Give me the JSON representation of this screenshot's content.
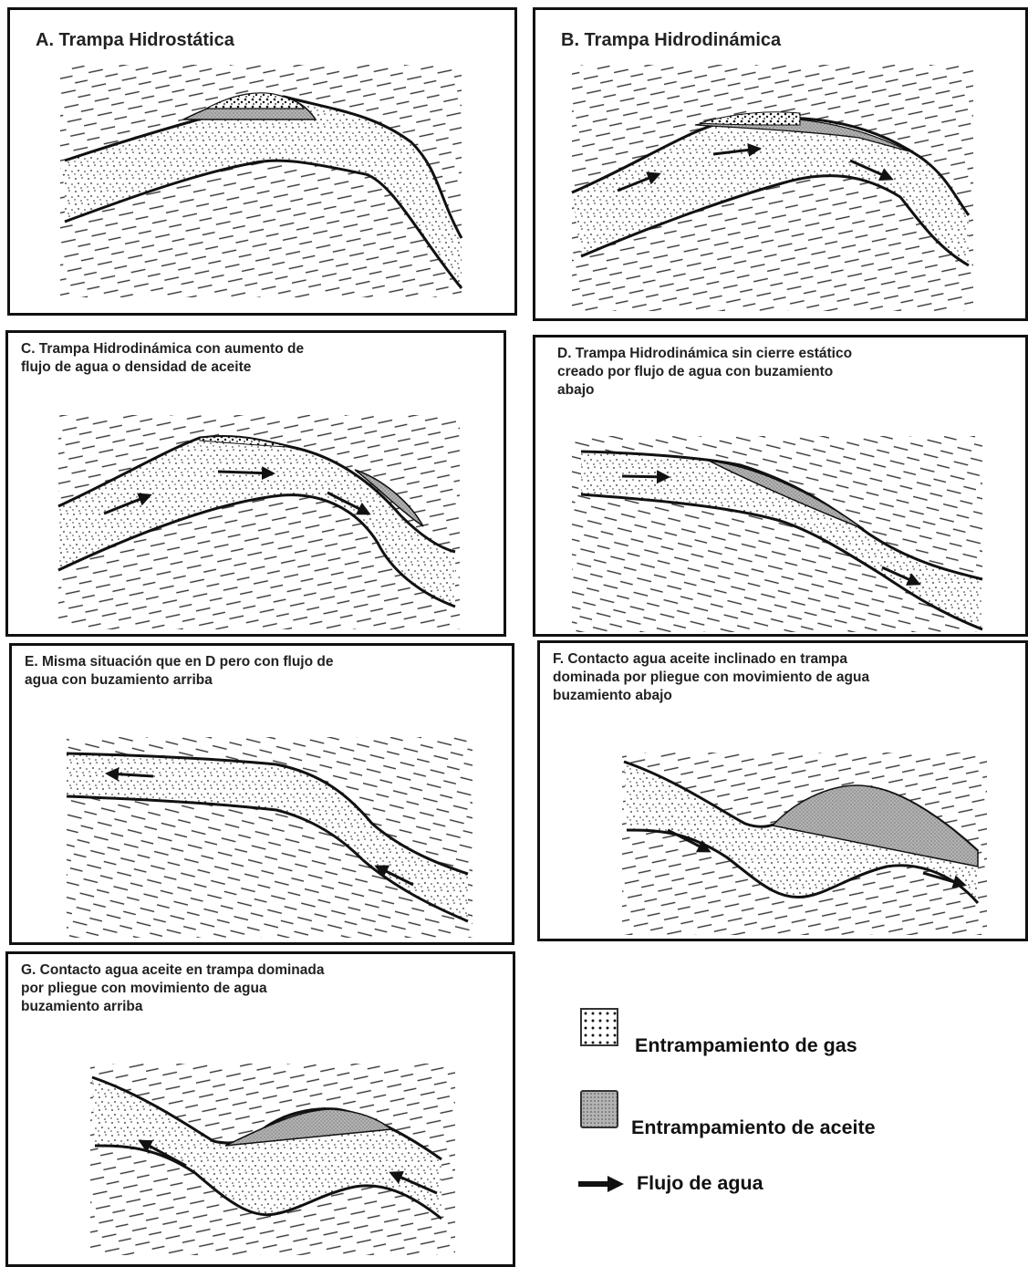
{
  "panels": {
    "a": {
      "title": "A. Trampa Hidrostática"
    },
    "b": {
      "title": "B. Trampa Hidrodinámica"
    },
    "c": {
      "title": "C. Trampa Hidrodinámica con aumento de\nflujo de agua o densidad de aceite"
    },
    "d": {
      "title": "D. Trampa Hidrodinámica sin cierre estático\ncreado por flujo de agua con buzamiento\nabajo"
    },
    "e": {
      "title": "E. Misma situación que en D pero con flujo de\nagua con buzamiento arriba"
    },
    "f": {
      "title": "F. Contacto agua aceite inclinado en trampa\ndominada por pliegue con movimiento de agua\nbuzamiento abajo"
    },
    "g": {
      "title": "G. Contacto agua aceite en trampa dominada\npor pliegue con movimiento de agua\nbuzamiento arriba"
    }
  },
  "legend": {
    "gas": {
      "label": "Entrampamiento de gas",
      "icon": "dotted-swatch-icon"
    },
    "oil": {
      "label": "Entrampamiento de aceite",
      "icon": "gray-swatch-icon"
    },
    "water": {
      "label": "Flujo de agua",
      "icon": "arrow-right-icon"
    }
  },
  "colors": {
    "outline": "#111111",
    "oil_fill": "#b8b8b8",
    "sand_fill": "#ffffff"
  }
}
